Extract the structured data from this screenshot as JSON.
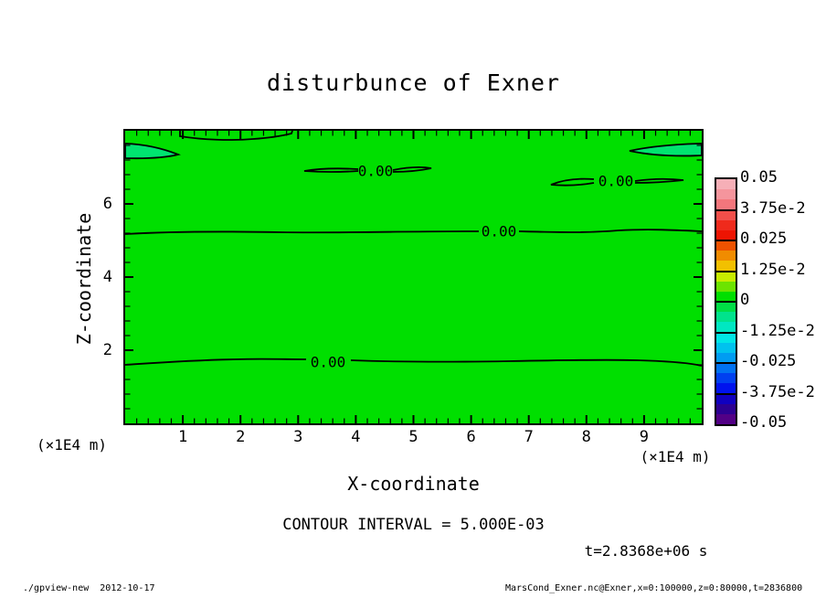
{
  "title": "disturbunce of Exner",
  "contour_label": "0.00",
  "plot": {
    "background": "#00DF00",
    "blob_fill": "#00E470",
    "frame_color": "#000000"
  },
  "axes": {
    "x": {
      "label": "X-coordinate",
      "unit": "(×1E4 m)",
      "min": 0,
      "max": 10,
      "major_ticks": [
        1,
        2,
        3,
        4,
        5,
        6,
        7,
        8,
        9
      ],
      "minor_step": 0.2
    },
    "y": {
      "label": "Z-coordinate",
      "unit": "(×1E4 m)",
      "min": 0,
      "max": 8,
      "major_ticks": [
        2,
        4,
        6
      ],
      "minor_step": 0.4
    }
  },
  "colorbar": {
    "labels": [
      "0.05",
      "3.75e-2",
      "0.025",
      "1.25e-2",
      "0",
      "-1.25e-2",
      "-0.025",
      "-3.75e-2",
      "-0.05"
    ],
    "band_colors": [
      "#F6AFB7",
      "#F5959D",
      "#F3767C",
      "#F14F4A",
      "#EF2A1C",
      "#ED1402",
      "#EE5200",
      "#F08C00",
      "#F2C000",
      "#C8EC00",
      "#6CE400",
      "#00DF00",
      "#00DE46",
      "#00E38C",
      "#00E7C2",
      "#00E6E6",
      "#00C2EE",
      "#009CF2",
      "#0072F2",
      "#0040F0",
      "#0012EE",
      "#1000C0",
      "#2C0092",
      "#520086"
    ]
  },
  "annotations": {
    "contour_interval": "CONTOUR INTERVAL = 5.000E-03",
    "time": "t=2.8368e+06 s"
  },
  "footer": {
    "left": "./gpview-new  2012-10-17",
    "right": "MarsCond_Exner.nc@Exner,x=0:100000,z=0:80000,t=2836800"
  },
  "chart_data": {
    "type": "contour",
    "title": "disturbunce of Exner",
    "xlabel": "X-coordinate",
    "ylabel": "Z-coordinate",
    "x_unit": "(×1E4 m)",
    "y_unit": "(×1E4 m)",
    "xlim": [
      0,
      10
    ],
    "ylim": [
      0,
      8
    ],
    "x_ticks": [
      1,
      2,
      3,
      4,
      5,
      6,
      7,
      8,
      9
    ],
    "y_ticks": [
      2,
      4,
      6
    ],
    "grid": false,
    "contour_interval": 0.005,
    "colorbar_levels": [
      0.05,
      0.0375,
      0.025,
      0.0125,
      0,
      -0.0125,
      -0.025,
      -0.0375,
      -0.05
    ],
    "field_summary": "Exner disturbance is approximately 0 over the whole x-z domain; only 0.00 contour lines appear on a uniform green (0-level) shaded field",
    "zero_contours": [
      {
        "shape": "full-width wavy line",
        "z": 5.25,
        "x_range": [
          0,
          10
        ],
        "label": "0.00",
        "label_x": 6.5
      },
      {
        "shape": "full-width wavy line",
        "z": 1.65,
        "x_range": [
          0,
          10
        ],
        "label": "0.00",
        "label_x": 3.5
      },
      {
        "shape": "thin closed lens",
        "z": 6.9,
        "x_range": [
          3.1,
          5.3
        ],
        "label": "0.00",
        "label_x": 4.3
      },
      {
        "shape": "thin closed lens",
        "z": 6.55,
        "x_range": [
          7.4,
          9.7
        ],
        "label": "0.00",
        "label_x": 8.5
      },
      {
        "shape": "blob attached to left edge",
        "z": 7.5,
        "x_range": [
          0,
          0.95
        ]
      },
      {
        "shape": "blob attached to right edge",
        "z": 7.45,
        "x_range": [
          8.7,
          10
        ]
      },
      {
        "shape": "sliver attached to top edge",
        "z": 7.85,
        "x_range": [
          0.95,
          2.9
        ]
      }
    ],
    "time_annotation": "t=2.8368e+06 s"
  }
}
